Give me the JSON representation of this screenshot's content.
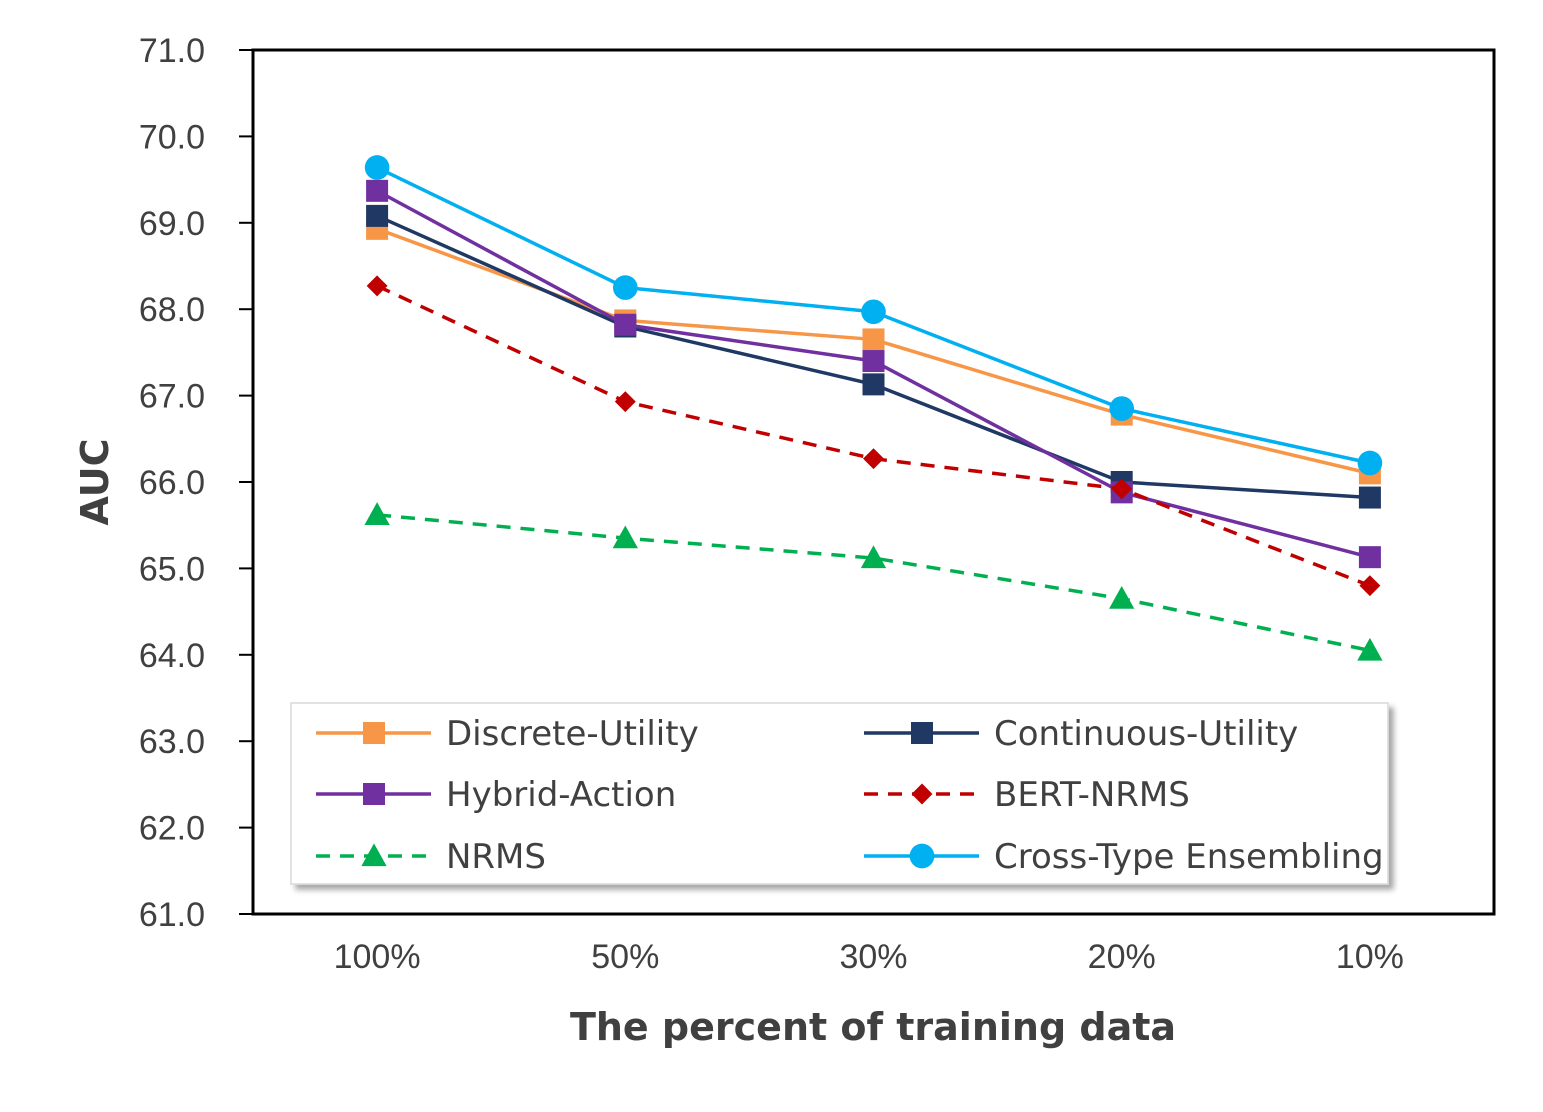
{
  "chart_data": {
    "type": "line",
    "title": "",
    "xlabel": "The percent of training data",
    "ylabel": "AUC",
    "ylim": [
      61.0,
      71.0
    ],
    "yticks": [
      "61.0",
      "62.0",
      "63.0",
      "64.0",
      "65.0",
      "66.0",
      "67.0",
      "68.0",
      "69.0",
      "70.0",
      "71.0"
    ],
    "categories": [
      "100%",
      "50%",
      "30%",
      "20%",
      "10%"
    ],
    "legend_position": "lower-center",
    "series": [
      {
        "name": "Discrete-Utility",
        "values": [
          68.93,
          67.87,
          67.65,
          66.78,
          66.1
        ],
        "color": "#f79646",
        "marker": "square",
        "dash": "solid"
      },
      {
        "name": "Continuous-Utility",
        "values": [
          69.08,
          67.8,
          67.13,
          66.0,
          65.82
        ],
        "color": "#1f3864",
        "marker": "square",
        "dash": "solid"
      },
      {
        "name": "Hybrid-Action",
        "values": [
          69.37,
          67.82,
          67.4,
          65.88,
          65.13
        ],
        "color": "#7030a0",
        "marker": "square",
        "dash": "solid"
      },
      {
        "name": "BERT-NRMS",
        "values": [
          68.27,
          66.93,
          66.27,
          65.92,
          64.8
        ],
        "color": "#c00000",
        "marker": "diamond",
        "dash": "dashed"
      },
      {
        "name": "NRMS",
        "values": [
          65.62,
          65.35,
          65.12,
          64.65,
          64.05
        ],
        "color": "#00b050",
        "marker": "triangle",
        "dash": "dashed"
      },
      {
        "name": "Cross-Type Ensembling",
        "values": [
          69.64,
          68.25,
          67.97,
          66.85,
          66.22
        ],
        "color": "#00b0f0",
        "marker": "circle",
        "dash": "solid"
      }
    ]
  }
}
